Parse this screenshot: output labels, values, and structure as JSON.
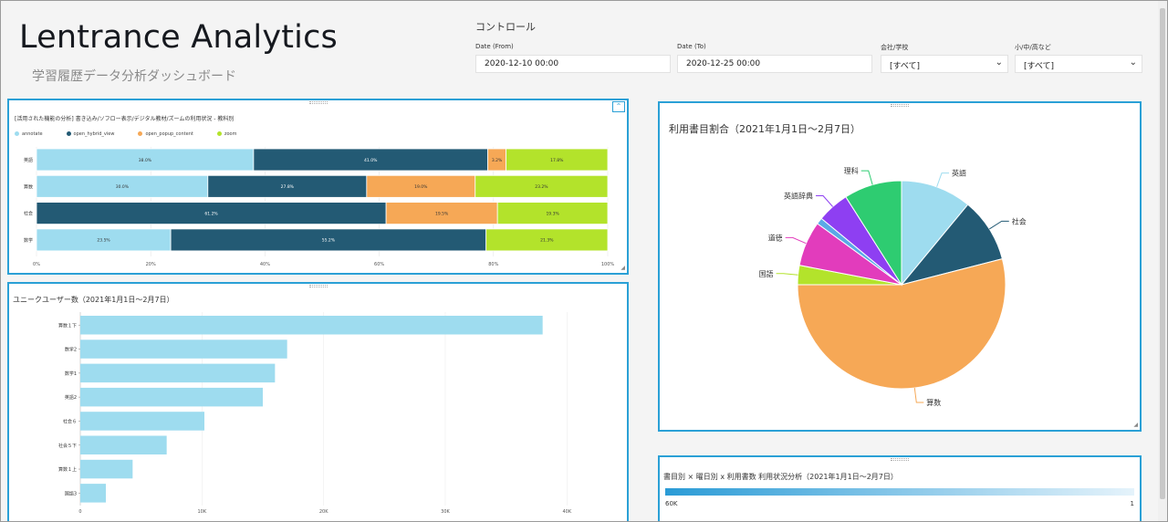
{
  "header": {
    "title": "Lentrance Analytics",
    "subtitle": "学習履歴データ分析ダッシュボード"
  },
  "controls": {
    "label": "コントロール",
    "date_from": {
      "label": "Date (From)",
      "value": "2020-12-10 00:00"
    },
    "date_to": {
      "label": "Date (To)",
      "value": "2020-12-25 00:00"
    },
    "company": {
      "label": "会社/学校",
      "value": "[すべて]"
    },
    "level": {
      "label": "小/中/高など",
      "value": "[すべて]"
    }
  },
  "panels": {
    "stacked": {
      "title": "[活用された機能の分析] 書き込み/ソフロー表示/デジタル教材/ズームの利用状況 - 教科別"
    },
    "hbar": {
      "title": "ユニークユーザー数（2021年1月1日～2月7日）"
    },
    "pie": {
      "title": "利用書目割合（2021年1月1日～2月7日）"
    },
    "heat": {
      "title": "書目別 × 曜日別 x 利用書数 利用状況分析（2021年1月1日～2月7日）",
      "min_label": "60K",
      "max_label": "1"
    }
  },
  "chart_data": [
    {
      "type": "bar",
      "orientation": "horizontal",
      "stacked": "percent",
      "categories": [
        "英語",
        "算数",
        "社会",
        "数学"
      ],
      "series": [
        {
          "name": "annotate",
          "color": "#9edcef",
          "values": [
            38.0,
            30.0,
            0,
            23.5
          ]
        },
        {
          "name": "open_hybrid_view",
          "color": "#235a74",
          "values": [
            41.0,
            27.8,
            61.2,
            55.2
          ]
        },
        {
          "name": "open_popup_content",
          "color": "#f6a856",
          "values": [
            3.2,
            19.0,
            19.5,
            0
          ]
        },
        {
          "name": "zoom",
          "color": "#b3e32b",
          "values": [
            17.8,
            23.2,
            19.3,
            21.3
          ]
        }
      ],
      "data_labels": [
        [
          "38.0%",
          "41.0%",
          "3.2%",
          "17.8%"
        ],
        [
          "30.0%",
          "27.8%",
          "19.0%",
          "23.2%"
        ],
        [
          "",
          "61.2%",
          "19.5%",
          "19.3%"
        ],
        [
          "23.5%",
          "55.2%",
          "",
          "21.3%"
        ]
      ],
      "xticks": [
        "0%",
        "20%",
        "40%",
        "60%",
        "80%",
        "100%"
      ],
      "legend": "top-left"
    },
    {
      "type": "bar",
      "orientation": "horizontal",
      "categories": [
        "算数１下",
        "数学2",
        "数学1",
        "英語2",
        "社会６",
        "社会５下",
        "算数１上",
        "国語3"
      ],
      "values": [
        38000,
        17000,
        16000,
        15000,
        10200,
        7100,
        4300,
        2100
      ],
      "color": "#9edcef",
      "xlim": [
        0,
        42000
      ],
      "xticks": [
        "0",
        "10K",
        "20K",
        "30K",
        "40K"
      ]
    },
    {
      "type": "pie",
      "slices": [
        {
          "name": "英語",
          "value": 11,
          "color": "#9edcef"
        },
        {
          "name": "社会",
          "value": 10,
          "color": "#235a74"
        },
        {
          "name": "算数",
          "value": 54,
          "color": "#f6a856"
        },
        {
          "name": "国語",
          "value": 3,
          "color": "#b3e32b"
        },
        {
          "name": "道徳",
          "value": 7,
          "color": "#e23cbc"
        },
        {
          "name": "",
          "value": 1,
          "color": "#5aa9e6"
        },
        {
          "name": "英語辞典",
          "value": 5,
          "color": "#8e3ff2"
        },
        {
          "name": "理科",
          "value": 9,
          "color": "#2ecc71"
        }
      ]
    }
  ]
}
